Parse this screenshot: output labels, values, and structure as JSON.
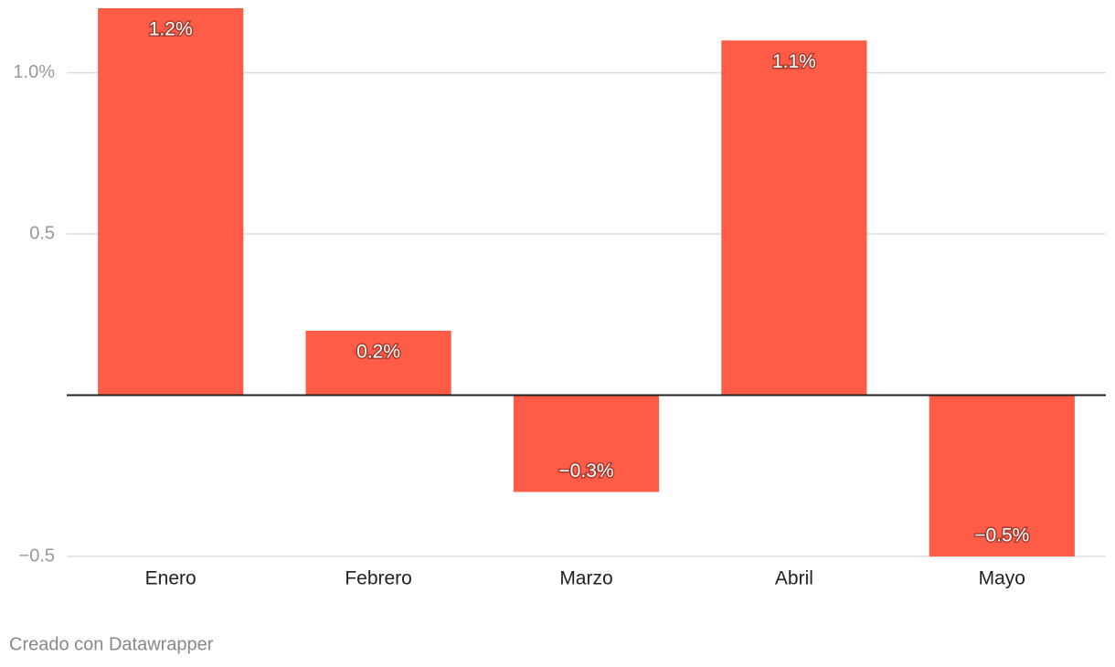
{
  "chart_data": {
    "type": "bar",
    "categories": [
      "Enero",
      "Febrero",
      "Marzo",
      "Abril",
      "Mayo"
    ],
    "values": [
      1.2,
      0.2,
      -0.3,
      1.1,
      -0.5
    ],
    "value_labels": [
      "1.2%",
      "0.2%",
      "−0.3%",
      "1.1%",
      "−0.5%"
    ],
    "color": "#ff5c47",
    "ylim": [
      -0.5,
      1.2
    ],
    "yticks": [
      {
        "value": -0.5,
        "label": "−0.5"
      },
      0.5,
      {
        "value": 1,
        "label": "1.0%"
      }
    ],
    "grid": true,
    "footer": "Creado con Datawrapper"
  }
}
